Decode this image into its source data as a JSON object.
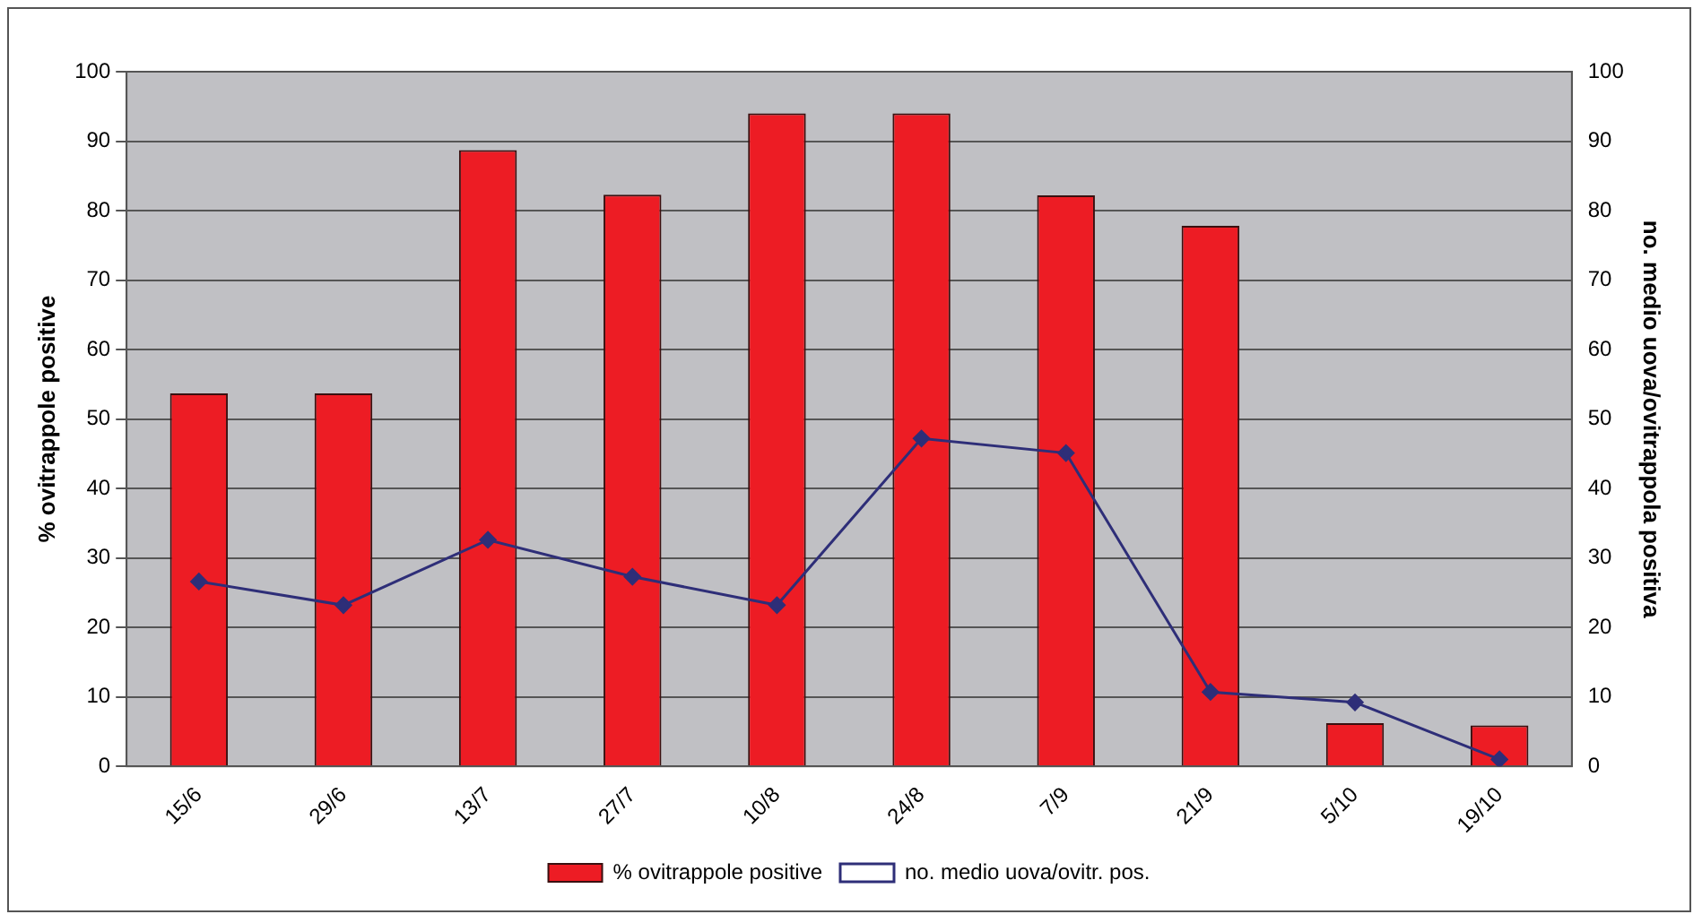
{
  "chart_data": {
    "type": "bar",
    "ylabel": "% ovitrappole positive",
    "y2label": "no. medio uova/ovitrappola positiva",
    "categories": [
      "15/6",
      "29/6",
      "13/7",
      "27/7",
      "10/8",
      "24/8",
      "7/9",
      "21/9",
      "5/10",
      "19/10"
    ],
    "series": [
      {
        "name": "% ovitrappole positive",
        "color": "#ed1c24",
        "values": [
          53.7,
          53.7,
          88.7,
          82.3,
          94,
          94,
          82.2,
          77.8,
          6.2,
          5.9
        ]
      },
      {
        "name": "no. medio uova/ovitr. pos.",
        "type": "line",
        "axis": "y2",
        "color": "#2e2e78",
        "marker": "diamond",
        "values": [
          26.6,
          23.2,
          32.6,
          27.3,
          23.2,
          47.2,
          45.1,
          10.7,
          9.2,
          1
        ]
      }
    ],
    "ylim": [
      0,
      100
    ],
    "yticks": [
      0,
      10,
      20,
      30,
      40,
      50,
      60,
      70,
      80,
      90,
      100
    ],
    "y2lim": [
      0,
      100
    ],
    "y2ticks": [
      0,
      10,
      20,
      30,
      40,
      50,
      60,
      70,
      80,
      90,
      100
    ],
    "grid": "y",
    "legend": "bottom"
  }
}
